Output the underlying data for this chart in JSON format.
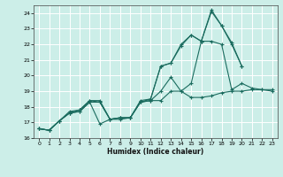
{
  "xlabel": "Humidex (Indice chaleur)",
  "bg_color": "#cceee8",
  "grid_color": "#ffffff",
  "line_color": "#1a6b5e",
  "xlim": [
    -0.5,
    23.5
  ],
  "ylim": [
    16,
    24.5
  ],
  "xticks": [
    0,
    1,
    2,
    3,
    4,
    5,
    6,
    7,
    8,
    9,
    10,
    11,
    12,
    13,
    14,
    15,
    16,
    17,
    18,
    19,
    20,
    21,
    22,
    23
  ],
  "yticks": [
    16,
    17,
    18,
    19,
    20,
    21,
    22,
    23,
    24
  ],
  "series": [
    {
      "x": [
        0,
        1,
        2,
        3,
        4,
        5,
        6,
        7,
        8,
        9,
        10,
        11,
        12,
        13,
        14,
        15,
        16,
        17,
        18,
        19,
        20,
        21,
        22,
        23
      ],
      "y": [
        16.6,
        16.5,
        17.1,
        17.6,
        17.7,
        18.3,
        16.9,
        17.2,
        17.3,
        17.3,
        18.3,
        18.4,
        18.4,
        19.0,
        19.0,
        18.6,
        18.6,
        18.7,
        18.9,
        19.0,
        19.0,
        19.1,
        19.1,
        19.1
      ]
    },
    {
      "x": [
        0,
        1,
        2,
        3,
        4,
        5,
        6,
        7,
        8,
        9,
        10,
        11,
        12,
        13,
        14,
        15,
        16,
        17,
        18,
        19,
        20,
        21,
        22,
        23
      ],
      "y": [
        16.6,
        16.5,
        17.1,
        17.6,
        17.7,
        18.3,
        18.3,
        17.2,
        17.3,
        17.3,
        18.3,
        18.4,
        19.0,
        19.9,
        19.0,
        19.5,
        22.2,
        22.2,
        22.0,
        19.1,
        19.5,
        19.2,
        19.1,
        19.0
      ]
    },
    {
      "x": [
        0,
        1,
        2,
        3,
        4,
        5,
        6,
        7,
        8,
        9,
        10,
        11,
        12,
        13,
        14,
        15,
        16,
        17,
        18,
        19,
        20
      ],
      "y": [
        16.6,
        16.5,
        17.1,
        17.6,
        17.8,
        18.4,
        18.3,
        17.2,
        17.3,
        17.3,
        18.4,
        18.5,
        20.6,
        20.8,
        21.9,
        22.6,
        22.2,
        24.1,
        23.2,
        22.0,
        20.6
      ]
    },
    {
      "x": [
        0,
        1,
        2,
        3,
        4,
        5,
        6,
        7,
        8,
        9,
        10,
        11,
        12,
        13,
        14,
        15,
        16,
        17,
        18,
        19,
        20
      ],
      "y": [
        16.6,
        16.5,
        17.1,
        17.7,
        17.8,
        18.4,
        18.4,
        17.2,
        17.2,
        17.3,
        18.3,
        18.5,
        20.6,
        20.8,
        22.0,
        22.6,
        22.2,
        24.2,
        23.2,
        22.1,
        20.6
      ]
    }
  ]
}
